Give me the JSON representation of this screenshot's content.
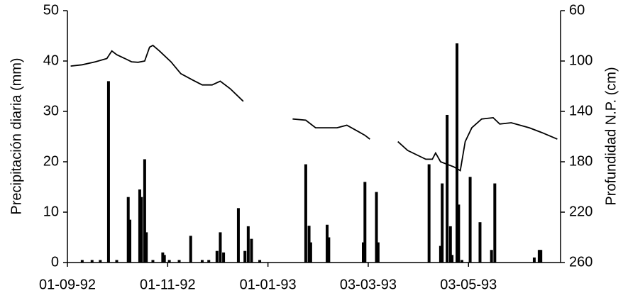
{
  "chart_data": {
    "type": "bar-line",
    "y_label": "Precipitación diaria (mm)",
    "y2_label": "Profundidad N.P. (cm)",
    "xlim": [
      0,
      300
    ],
    "xticks": [
      {
        "value": 0,
        "label": "01-09-92"
      },
      {
        "value": 61,
        "label": "01-11-92"
      },
      {
        "value": 122,
        "label": "01-01-93"
      },
      {
        "value": 183,
        "label": "03-03-93"
      },
      {
        "value": 244,
        "label": "03-05-93"
      }
    ],
    "ylim": [
      0,
      50
    ],
    "yticks": [
      0,
      10,
      20,
      30,
      40,
      50
    ],
    "y2lim": [
      60,
      260
    ],
    "y2ticks": [
      60,
      100,
      140,
      180,
      220,
      260
    ],
    "y2_inverted": true,
    "series": [
      {
        "type": "bar",
        "color": "#000000",
        "x": [
          9,
          15,
          20,
          25,
          30,
          37,
          38,
          44,
          45,
          47,
          48,
          52,
          58,
          59,
          62,
          68,
          75,
          82,
          86,
          91,
          93,
          95,
          104,
          108,
          110,
          112,
          117,
          145,
          147,
          148,
          158,
          159,
          180,
          181,
          188,
          189,
          220,
          227,
          228,
          231,
          233,
          234,
          237,
          238,
          240,
          245,
          251,
          258,
          260,
          284,
          287,
          288
        ],
        "values": [
          0.5,
          0.5,
          0.5,
          36,
          0.5,
          13,
          8.5,
          14.5,
          13,
          20.5,
          6,
          0.5,
          2,
          1.5,
          0.5,
          0.5,
          5.3,
          0.5,
          0.5,
          2.3,
          6,
          2,
          10.8,
          2.3,
          7.2,
          4.7,
          0.5,
          19.5,
          7.3,
          4,
          7.5,
          5,
          4,
          16,
          14,
          4,
          19.5,
          3.3,
          15.7,
          29.3,
          7.2,
          1.5,
          43.5,
          11.5,
          0.5,
          17,
          8,
          2.5,
          15.7,
          1,
          2.5,
          2.5
        ]
      },
      {
        "type": "line",
        "axis": "y2",
        "color": "#000000",
        "x": [
          2,
          9,
          17,
          24,
          27,
          30,
          35,
          39,
          43,
          47,
          50,
          52,
          56,
          63,
          69,
          76,
          82,
          88,
          93,
          99,
          107,
          null,
          137,
          145,
          151,
          164,
          170,
          177,
          181,
          184,
          null,
          201,
          207,
          218,
          222,
          224,
          227,
          235,
          239,
          242,
          246,
          252,
          259,
          263,
          270,
          281,
          289,
          298
        ],
        "values": [
          104,
          103,
          100.6,
          98,
          92,
          95,
          98,
          100.6,
          101,
          100,
          89,
          87.6,
          92,
          100.6,
          110,
          115,
          119,
          119,
          116,
          122,
          132,
          null,
          146,
          147,
          153,
          153,
          151,
          156,
          159,
          162,
          null,
          164,
          171,
          178,
          178,
          173,
          180,
          184,
          187,
          164,
          153,
          146,
          145,
          150,
          149,
          153,
          157,
          162
        ]
      }
    ]
  }
}
